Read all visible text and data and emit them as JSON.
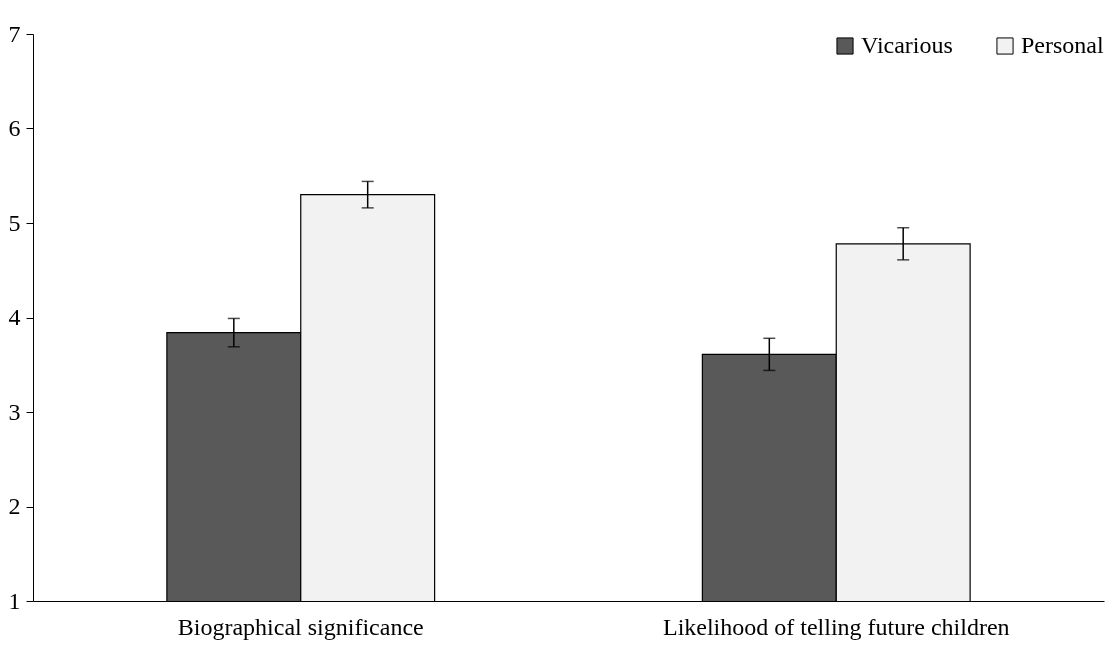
{
  "chart_data": {
    "type": "bar",
    "categories": [
      "Biographical significance",
      "Likelihood of telling future children"
    ],
    "series": [
      {
        "name": "Vicarious",
        "color": "#595959",
        "values": [
          3.84,
          3.61
        ],
        "errors": [
          0.15,
          0.17
        ]
      },
      {
        "name": "Personal",
        "color": "#f2f2f2",
        "values": [
          5.3,
          4.78
        ],
        "errors": [
          0.14,
          0.17
        ]
      }
    ],
    "ylim": [
      1,
      7
    ],
    "yticks": [
      1,
      2,
      3,
      4,
      5,
      6,
      7
    ],
    "grid": false,
    "legend": "top right"
  }
}
